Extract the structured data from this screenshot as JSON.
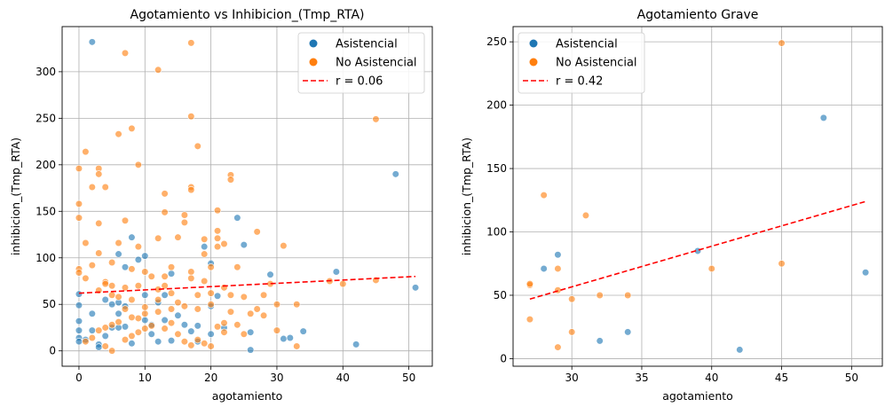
{
  "chart_data": [
    {
      "type": "scatter",
      "title": "Agotamiento vs Inhibicion_(Tmp_RTA)",
      "xlabel": "agotamiento",
      "ylabel": "inhibicion_(Tmp_RTA)",
      "xlim": [
        -2.55,
        53.55
      ],
      "ylim": [
        -16.5,
        348.5
      ],
      "xticks": [
        0,
        10,
        20,
        30,
        40,
        50
      ],
      "yticks": [
        0,
        50,
        100,
        150,
        200,
        250,
        300
      ],
      "grid": true,
      "legend_position": "top-right",
      "series": [
        {
          "name": "Asistencial",
          "color": "#1f77b4",
          "points": [
            [
              2,
              332
            ],
            [
              48,
              190
            ],
            [
              24,
              143
            ],
            [
              25,
              114
            ],
            [
              8,
              122
            ],
            [
              10,
              102
            ],
            [
              9,
              98
            ],
            [
              20,
              94
            ],
            [
              14,
              83
            ],
            [
              29,
              82
            ],
            [
              39,
              85
            ],
            [
              19,
              112
            ],
            [
              6,
              104
            ],
            [
              6,
              52
            ],
            [
              7,
              90
            ],
            [
              5,
              50
            ],
            [
              10,
              60
            ],
            [
              13,
              60
            ],
            [
              15,
              38
            ],
            [
              13,
              33
            ],
            [
              20,
              48
            ],
            [
              21,
              59
            ],
            [
              10,
              33
            ],
            [
              11,
              28
            ],
            [
              11,
              18
            ],
            [
              12,
              10
            ],
            [
              14,
              11
            ],
            [
              7,
              26
            ],
            [
              6,
              25
            ],
            [
              5,
              25
            ],
            [
              4,
              16
            ],
            [
              3,
              7
            ],
            [
              3,
              4
            ],
            [
              0,
              22
            ],
            [
              0,
              14
            ],
            [
              0,
              10
            ],
            [
              0,
              32
            ],
            [
              0,
              49
            ],
            [
              0,
              61
            ],
            [
              1,
              12
            ],
            [
              2,
              40
            ],
            [
              2,
              22
            ],
            [
              4,
              55
            ],
            [
              8,
              8
            ],
            [
              16,
              28
            ],
            [
              18,
              27
            ],
            [
              17,
              21
            ],
            [
              20,
              18
            ],
            [
              22,
              25
            ],
            [
              26,
              20
            ],
            [
              31,
              13
            ],
            [
              34,
              21
            ],
            [
              42,
              7
            ],
            [
              51,
              68
            ],
            [
              26,
              1
            ],
            [
              32,
              14
            ],
            [
              18,
              10
            ],
            [
              6,
              40
            ],
            [
              7,
              48
            ],
            [
              12,
              52
            ]
          ]
        },
        {
          "name": "No Asistencial",
          "color": "#ff7f0e",
          "points": [
            [
              7,
              320
            ],
            [
              17,
              331
            ],
            [
              12,
              302
            ],
            [
              17,
              252
            ],
            [
              45,
              249
            ],
            [
              8,
              239
            ],
            [
              6,
              233
            ],
            [
              18,
              220
            ],
            [
              1,
              214
            ],
            [
              3,
              196
            ],
            [
              3,
              190
            ],
            [
              0,
              196
            ],
            [
              23,
              189
            ],
            [
              23,
              184
            ],
            [
              9,
              200
            ],
            [
              2,
              176
            ],
            [
              4,
              176
            ],
            [
              17,
              176
            ],
            [
              17,
              173
            ],
            [
              13,
              169
            ],
            [
              0,
              158
            ],
            [
              21,
              151
            ],
            [
              13,
              149
            ],
            [
              16,
              146
            ],
            [
              27,
              128
            ],
            [
              0,
              143
            ],
            [
              16,
              138
            ],
            [
              3,
              137
            ],
            [
              7,
              140
            ],
            [
              12,
              121
            ],
            [
              21,
              129
            ],
            [
              31,
              113
            ],
            [
              21,
              121
            ],
            [
              15,
              122
            ],
            [
              1,
              116
            ],
            [
              6,
              116
            ],
            [
              9,
              112
            ],
            [
              3,
              105
            ],
            [
              19,
              120
            ],
            [
              22,
              115
            ],
            [
              21,
              112
            ],
            [
              19,
              104
            ],
            [
              20,
              90
            ],
            [
              24,
              90
            ],
            [
              8,
              88
            ],
            [
              14,
              90
            ],
            [
              10,
              85
            ],
            [
              11,
              80
            ],
            [
              5,
              95
            ],
            [
              2,
              92
            ],
            [
              0,
              88
            ],
            [
              0,
              84
            ],
            [
              1,
              78
            ],
            [
              4,
              74
            ],
            [
              4,
              72
            ],
            [
              5,
              70
            ],
            [
              3,
              65
            ],
            [
              7,
              68
            ],
            [
              9,
              70
            ],
            [
              12,
              66
            ],
            [
              17,
              85
            ],
            [
              17,
              78
            ],
            [
              13,
              80
            ],
            [
              13,
              70
            ],
            [
              19,
              75
            ],
            [
              22,
              68
            ],
            [
              23,
              60
            ],
            [
              25,
              58
            ],
            [
              28,
              60
            ],
            [
              29,
              72
            ],
            [
              33,
              50
            ],
            [
              38,
              75
            ],
            [
              40,
              72
            ],
            [
              45,
              76
            ],
            [
              30,
              50
            ],
            [
              27,
              45
            ],
            [
              23,
              42
            ],
            [
              22,
              30
            ],
            [
              24,
              28
            ],
            [
              26,
              40
            ],
            [
              28,
              38
            ],
            [
              30,
              22
            ],
            [
              33,
              5
            ],
            [
              25,
              18
            ],
            [
              20,
              50
            ],
            [
              18,
              45
            ],
            [
              16,
              48
            ],
            [
              14,
              45
            ],
            [
              12,
              42
            ],
            [
              10,
              40
            ],
            [
              9,
              35
            ],
            [
              8,
              36
            ],
            [
              6,
              31
            ],
            [
              5,
              28
            ],
            [
              4,
              25
            ],
            [
              3,
              22
            ],
            [
              2,
              14
            ],
            [
              1,
              10
            ],
            [
              4,
              5
            ],
            [
              5,
              0
            ],
            [
              7,
              12
            ],
            [
              8,
              16
            ],
            [
              9,
              20
            ],
            [
              10,
              24
            ],
            [
              11,
              27
            ],
            [
              13,
              24
            ],
            [
              14,
              30
            ],
            [
              15,
              18
            ],
            [
              16,
              10
            ],
            [
              17,
              6
            ],
            [
              18,
              12
            ],
            [
              19,
              8
            ],
            [
              20,
              5
            ],
            [
              21,
              26
            ],
            [
              22,
              20
            ],
            [
              7,
              45
            ],
            [
              10,
              47
            ],
            [
              12,
              55
            ],
            [
              15,
              52
            ],
            [
              8,
              55
            ],
            [
              6,
              58
            ],
            [
              5,
              60
            ],
            [
              14,
              62
            ],
            [
              18,
              60
            ],
            [
              20,
              62
            ]
          ]
        }
      ],
      "regression": {
        "name": "r = 0.06",
        "color": "#ff0000",
        "x": [
          0,
          51
        ],
        "y": [
          62,
          80
        ]
      }
    },
    {
      "type": "scatter",
      "title": "Agotamiento Grave",
      "xlabel": "agotamiento",
      "ylabel": "inhibicion_(Tmp_RTA)",
      "xlim": [
        25.8,
        52.2
      ],
      "ylim": [
        -6,
        262
      ],
      "xticks": [
        30,
        35,
        40,
        45,
        50
      ],
      "yticks": [
        0,
        50,
        100,
        150,
        200,
        250
      ],
      "grid": true,
      "legend_position": "top-left",
      "series": [
        {
          "name": "Asistencial",
          "color": "#1f77b4",
          "points": [
            [
              48,
              190
            ],
            [
              39,
              85
            ],
            [
              28,
              71
            ],
            [
              29,
              82
            ],
            [
              51,
              68
            ],
            [
              32,
              14
            ],
            [
              34,
              21
            ],
            [
              42,
              7
            ]
          ]
        },
        {
          "name": "No Asistencial",
          "color": "#ff7f0e",
          "points": [
            [
              45,
              249
            ],
            [
              28,
              129
            ],
            [
              31,
              113
            ],
            [
              27,
              58
            ],
            [
              27,
              59
            ],
            [
              27,
              31
            ],
            [
              29,
              71
            ],
            [
              29,
              54
            ],
            [
              29,
              9
            ],
            [
              30,
              47
            ],
            [
              30,
              21
            ],
            [
              32,
              50
            ],
            [
              34,
              50
            ],
            [
              40,
              71
            ],
            [
              45,
              75
            ]
          ]
        }
      ],
      "regression": {
        "name": "r = 0.42",
        "color": "#ff0000",
        "x": [
          27,
          51
        ],
        "y": [
          47,
          124
        ]
      }
    }
  ]
}
